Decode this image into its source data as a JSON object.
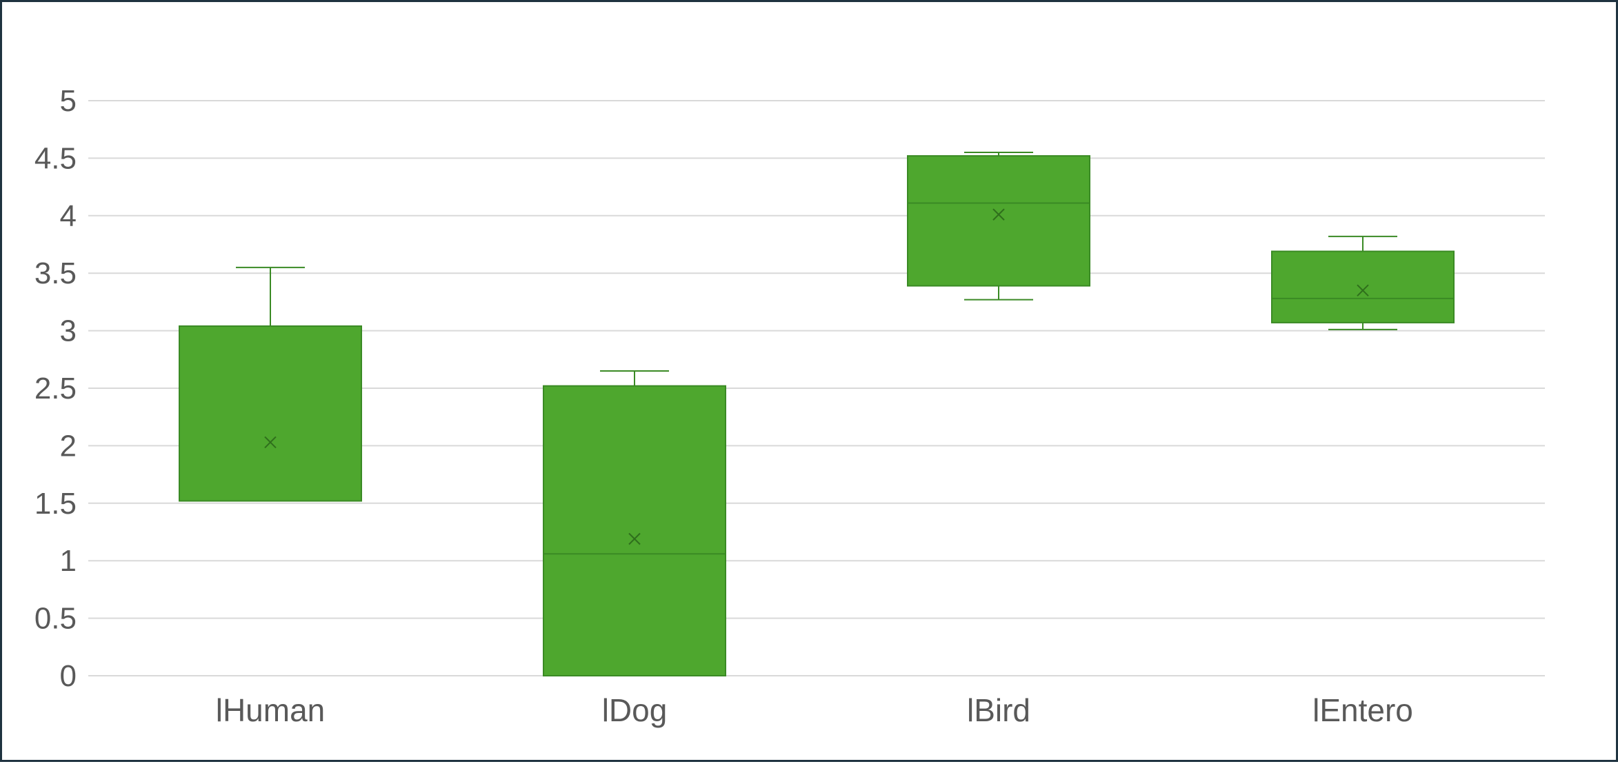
{
  "chart_data": {
    "type": "boxplot",
    "title": "",
    "xlabel": "",
    "ylabel": "",
    "ylim": [
      0,
      5
    ],
    "y_ticks": [
      0,
      0.5,
      1,
      1.5,
      2,
      2.5,
      3,
      3.5,
      4,
      4.5,
      5
    ],
    "y_tick_labels": [
      "0",
      "0.5",
      "1",
      "1.5",
      "2",
      "2.5",
      "3",
      "3.5",
      "4",
      "4.5",
      "5"
    ],
    "grid": true,
    "legend": "none",
    "categories": [
      "lHuman",
      "lDog",
      "lBird",
      "lEntero"
    ],
    "boxes": [
      {
        "category": "lHuman",
        "min": 1.52,
        "q1": 1.52,
        "median": 1.52,
        "q3": 3.04,
        "max": 3.55,
        "mean": 2.03
      },
      {
        "category": "lDog",
        "min": 0.0,
        "q1": 0.0,
        "median": 1.06,
        "q3": 2.52,
        "max": 2.65,
        "mean": 1.19
      },
      {
        "category": "lBird",
        "min": 3.27,
        "q1": 3.39,
        "median": 4.11,
        "q3": 4.52,
        "max": 4.55,
        "mean": 4.01
      },
      {
        "category": "lEntero",
        "min": 3.01,
        "q1": 3.07,
        "median": 3.28,
        "q3": 3.69,
        "max": 3.82,
        "mean": 3.35
      }
    ],
    "colors": {
      "box_fill": "#4ea72e",
      "box_stroke": "#3a8a24",
      "grid": "#d9d9d9",
      "axis": "#d9d9d9",
      "text": "#595959"
    }
  }
}
